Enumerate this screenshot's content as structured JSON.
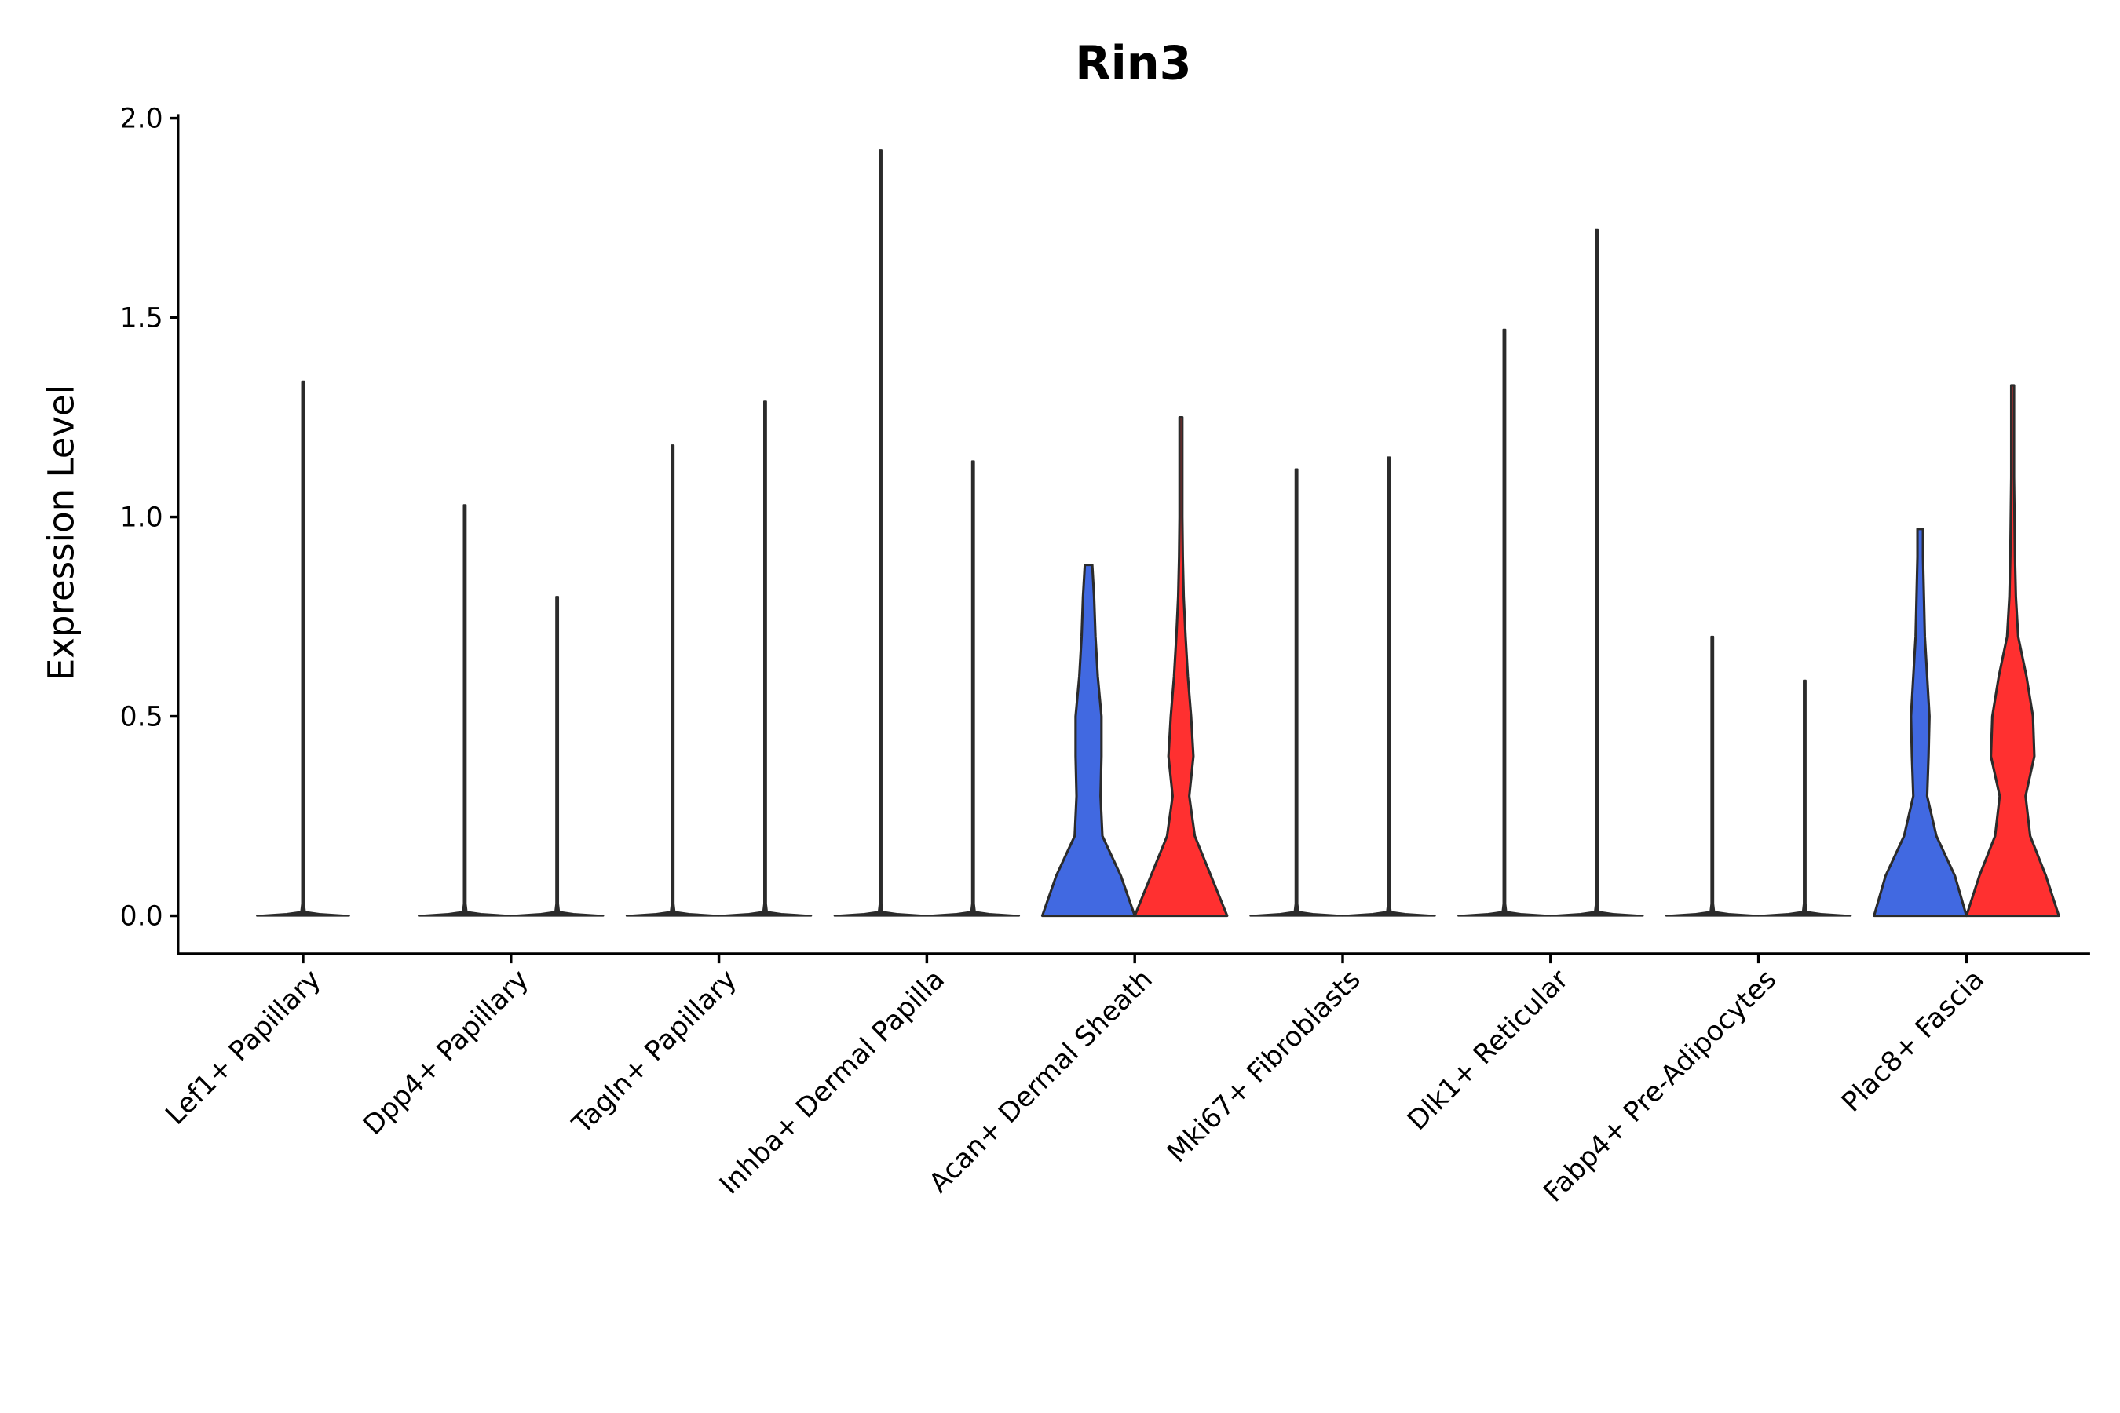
{
  "chart_data": {
    "type": "violin",
    "title": "Rin3",
    "xlabel": "",
    "ylabel": "Expression Level",
    "ylim": [
      -0.1,
      2.02
    ],
    "yticks": [
      "0.0",
      "0.5",
      "1.0",
      "1.5",
      "2.0"
    ],
    "grid": false,
    "colors": {
      "left": "#4169E1",
      "right": "#FF3030",
      "stroke": "#2b2b2b"
    },
    "density_levels": [
      0,
      0.1,
      0.2,
      0.3,
      0.4,
      0.5,
      0.6,
      0.7,
      0.8,
      0.9,
      1.0,
      1.1,
      1.2,
      1.3
    ],
    "categories": [
      {
        "label": "Lef1+ Papillary",
        "violins": [
          {
            "side": "center",
            "max": 1.34,
            "filled": false
          }
        ]
      },
      {
        "label": "Dpp4+ Papillary",
        "violins": [
          {
            "side": "left",
            "max": 1.03,
            "filled": false
          },
          {
            "side": "right",
            "max": 0.8,
            "filled": false
          }
        ]
      },
      {
        "label": "Tagln+ Papillary",
        "violins": [
          {
            "side": "left",
            "max": 1.18,
            "filled": false
          },
          {
            "side": "right",
            "max": 1.29,
            "filled": false
          }
        ]
      },
      {
        "label": "Inhba+ Dermal Papilla",
        "violins": [
          {
            "side": "left",
            "max": 1.92,
            "filled": false
          },
          {
            "side": "right",
            "max": 1.14,
            "filled": false
          }
        ]
      },
      {
        "label": "Acan+ Dermal Sheath",
        "violins": [
          {
            "side": "left",
            "max": 0.88,
            "filled": true,
            "density": [
              1.0,
              0.7,
              0.3,
              0.26,
              0.28,
              0.28,
              0.2,
              0.15,
              0.12,
              0.08
            ]
          },
          {
            "side": "right",
            "max": 1.25,
            "filled": true,
            "density": [
              1.0,
              0.65,
              0.3,
              0.18,
              0.27,
              0.22,
              0.15,
              0.1,
              0.06,
              0.04,
              0.03,
              0.03,
              0.03
            ]
          }
        ]
      },
      {
        "label": "Mki67+ Fibroblasts",
        "violins": [
          {
            "side": "left",
            "max": 1.12,
            "filled": false
          },
          {
            "side": "right",
            "max": 1.15,
            "filled": false
          }
        ]
      },
      {
        "label": "Dlk1+ Reticular",
        "violins": [
          {
            "side": "left",
            "max": 1.47,
            "filled": false
          },
          {
            "side": "right",
            "max": 1.72,
            "filled": false
          }
        ]
      },
      {
        "label": "Fabp4+ Pre-Adipocytes",
        "violins": [
          {
            "side": "left",
            "max": 0.7,
            "filled": false
          },
          {
            "side": "right",
            "max": 0.59,
            "filled": false
          }
        ]
      },
      {
        "label": "Plac8+ Fascia",
        "violins": [
          {
            "side": "left",
            "max": 0.97,
            "filled": true,
            "density": [
              1.0,
              0.75,
              0.35,
              0.15,
              0.18,
              0.2,
              0.15,
              0.1,
              0.08,
              0.06
            ]
          },
          {
            "side": "right",
            "max": 1.33,
            "filled": true,
            "density": [
              1.0,
              0.72,
              0.38,
              0.28,
              0.47,
              0.44,
              0.3,
              0.12,
              0.07,
              0.05,
              0.04,
              0.03,
              0.03,
              0.03
            ]
          }
        ]
      }
    ]
  }
}
